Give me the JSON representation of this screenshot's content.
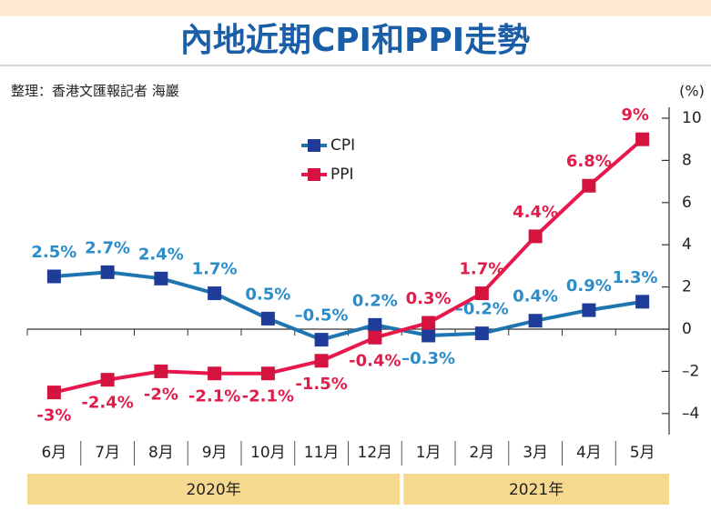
{
  "chart_data": {
    "type": "line",
    "title": "內地近期CPI和PPI走勢",
    "source": "整理：香港文匯報記者 海巖",
    "y_unit": "(%)",
    "categories": [
      "6月",
      "7月",
      "8月",
      "9月",
      "10月",
      "11月",
      "12月",
      "1月",
      "2月",
      "3月",
      "4月",
      "5月"
    ],
    "x_groups": [
      "2020年",
      "2021年"
    ],
    "series": [
      {
        "name": "CPI",
        "color": "#1f75b0",
        "marker_color": "#1f3c98",
        "label_color": "#2a8ccb",
        "values": [
          2.5,
          2.7,
          2.4,
          1.7,
          0.5,
          -0.5,
          0.2,
          -0.3,
          -0.2,
          0.4,
          0.9,
          1.3
        ],
        "value_labels": [
          "2.5%",
          "2.7%",
          "2.4%",
          "1.7%",
          "0.5%",
          "–0.5%",
          "0.2%",
          "–0.3%",
          "–0.2%",
          "0.4%",
          "0.9%",
          "1.3%"
        ]
      },
      {
        "name": "PPI",
        "color": "#e8184c",
        "marker_color": "#d4143f",
        "label_color": "#e01d4a",
        "values": [
          -3,
          -2.4,
          -2,
          -2.1,
          -2.1,
          -1.5,
          -0.4,
          0.3,
          1.7,
          4.4,
          6.8,
          9
        ],
        "value_labels": [
          "-3%",
          "-2.4%",
          "-2%",
          "-2.1%",
          "-2.1%",
          "-1.5%",
          "-0.4%",
          "0.3%",
          "1.7%",
          "4.4%",
          "6.8%",
          "9%"
        ]
      }
    ],
    "ylim": [
      -5,
      10
    ],
    "yticks": [
      {
        "value": -4,
        "label": "–4"
      },
      {
        "value": -2,
        "label": "–2"
      },
      0,
      2,
      4,
      6,
      8,
      10
    ]
  }
}
